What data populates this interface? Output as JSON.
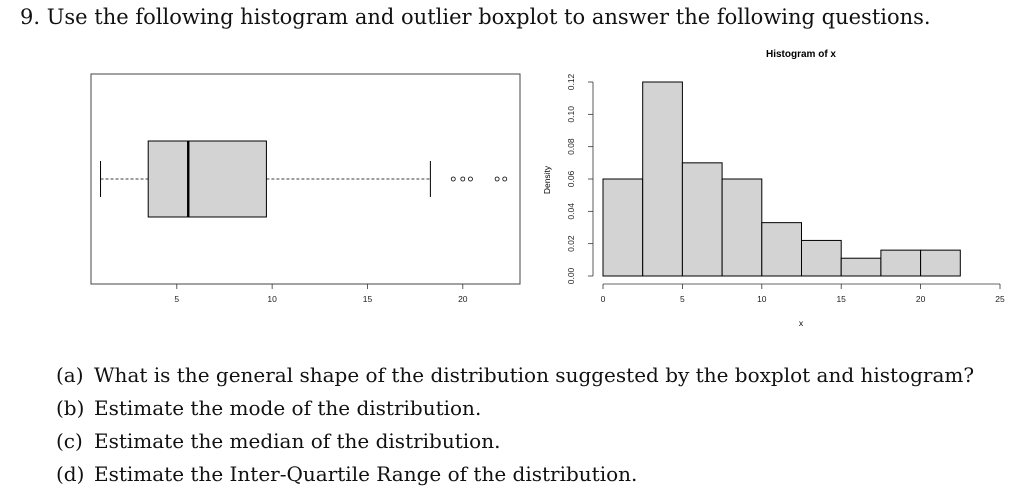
{
  "heading": "9. Use the following histogram and outlier boxplot to answer the following questions.",
  "questions": [
    {
      "label": "(a)",
      "text": "What is the general shape of the distribution suggested by the boxplot and histogram?"
    },
    {
      "label": "(b)",
      "text": "Estimate the mode of the distribution."
    },
    {
      "label": "(c)",
      "text": "Estimate the median of the distribution."
    },
    {
      "label": "(d)",
      "text": "Estimate the Inter-Quartile Range of the distribution."
    }
  ],
  "chart_data": [
    {
      "type": "boxplot",
      "orientation": "horizontal",
      "title": "",
      "xlabel": "",
      "xticks": [
        5,
        10,
        15,
        20
      ],
      "xlim": [
        0.5,
        23
      ],
      "whisker_low": 1,
      "q1": 3.5,
      "median": 5.6,
      "q3": 9.7,
      "whisker_high": 18.3,
      "outliers": [
        19.5,
        20,
        20.4,
        21.8,
        22.2
      ],
      "colors": {
        "box": "#d3d3d3",
        "line": "#000000"
      }
    },
    {
      "type": "histogram",
      "title": "Histogram of x",
      "xlabel": "x",
      "ylabel": "Density",
      "bin_edges": [
        0,
        2.5,
        5,
        7.5,
        10,
        12.5,
        15,
        17.5,
        20,
        22.5
      ],
      "values": [
        0.06,
        0.12,
        0.07,
        0.06,
        0.033,
        0.022,
        0.011,
        0.016,
        0.016
      ],
      "xticks": [
        0,
        5,
        10,
        15,
        20,
        25
      ],
      "yticks": [
        0.0,
        0.02,
        0.04,
        0.06,
        0.08,
        0.1,
        0.12
      ],
      "ytick_labels": [
        "0.00",
        "0.02",
        "0.04",
        "0.06",
        "0.08",
        "0.10",
        "0.12"
      ],
      "xlim": [
        0,
        25
      ],
      "ylim": [
        0,
        0.12
      ],
      "colors": {
        "bar": "#d3d3d3",
        "edge": "#000000"
      }
    }
  ]
}
